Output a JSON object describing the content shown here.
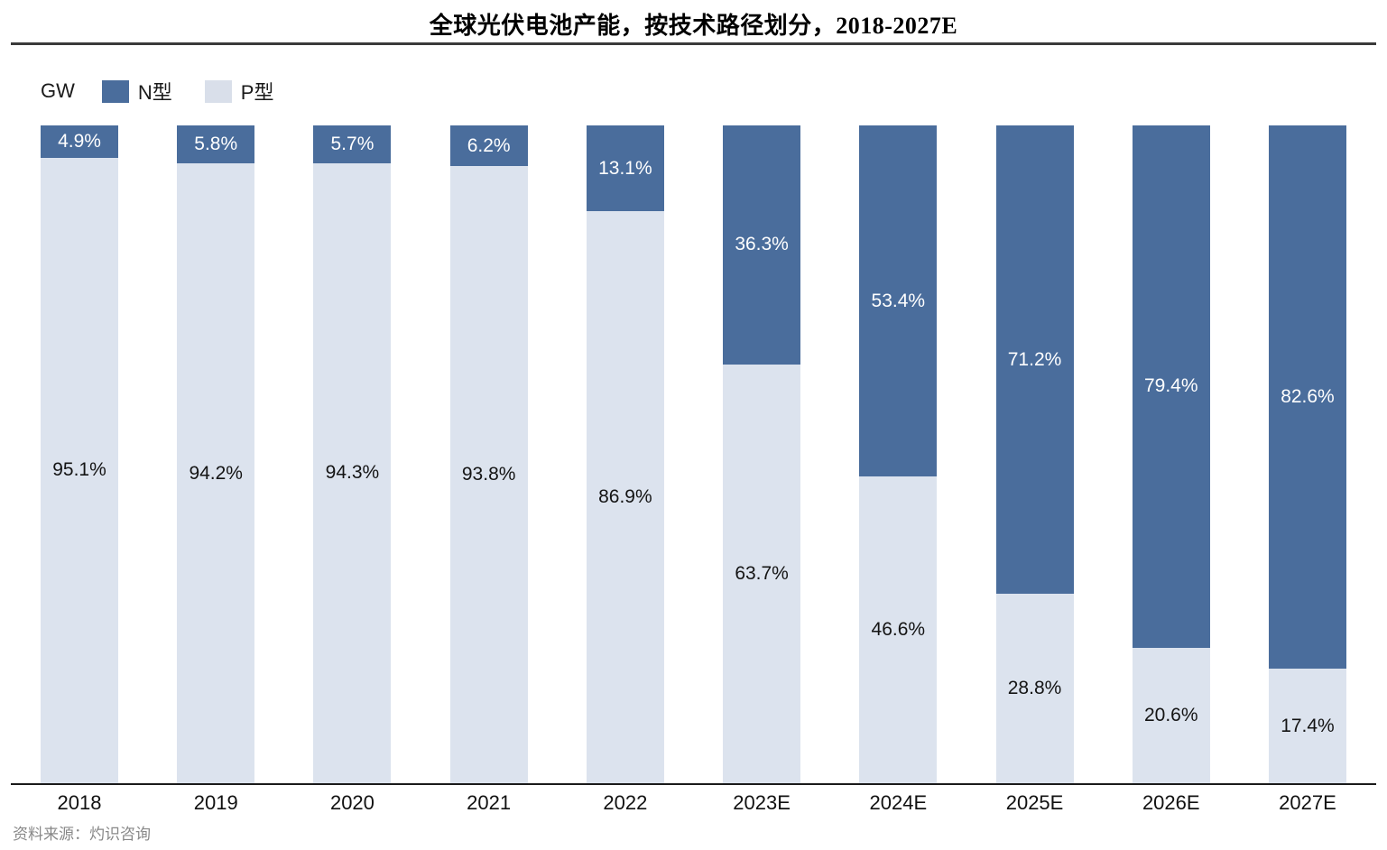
{
  "title": "全球光伏电池产能，按技术路径划分，2018-2027E",
  "legend": {
    "unit_label": "GW",
    "n_label": "N型",
    "p_label": "P型"
  },
  "colors": {
    "n_type": "#4a6d9c",
    "p_type": "#dce3ee",
    "axis": "#1a1a1a",
    "source_text": "#888888"
  },
  "source": "资料来源：灼识咨询",
  "chart_data": {
    "type": "bar",
    "subtype": "stacked-100-percent",
    "title": "全球光伏电池产能，按技术路径划分，2018-2027E",
    "unit": "GW",
    "grid": false,
    "legend_position": "top-left",
    "ylim": [
      0,
      100
    ],
    "categories": [
      "2018",
      "2019",
      "2020",
      "2021",
      "2022",
      "2023E",
      "2024E",
      "2025E",
      "2026E",
      "2027E"
    ],
    "series": [
      {
        "name": "N型",
        "color": "#4a6d9c",
        "values": [
          4.9,
          5.8,
          5.7,
          6.2,
          13.1,
          36.3,
          53.4,
          71.2,
          79.4,
          82.6
        ]
      },
      {
        "name": "P型",
        "color": "#dce3ee",
        "values": [
          95.1,
          94.2,
          94.3,
          93.8,
          86.9,
          63.7,
          46.6,
          28.8,
          20.6,
          17.4
        ]
      }
    ],
    "value_labels": {
      "n": [
        "4.9%",
        "5.8%",
        "5.7%",
        "6.2%",
        "13.1%",
        "36.3%",
        "53.4%",
        "71.2%",
        "79.4%",
        "82.6%"
      ],
      "p": [
        "95.1%",
        "94.2%",
        "94.3%",
        "93.8%",
        "86.9%",
        "63.7%",
        "46.6%",
        "28.8%",
        "20.6%",
        "17.4%"
      ]
    }
  }
}
